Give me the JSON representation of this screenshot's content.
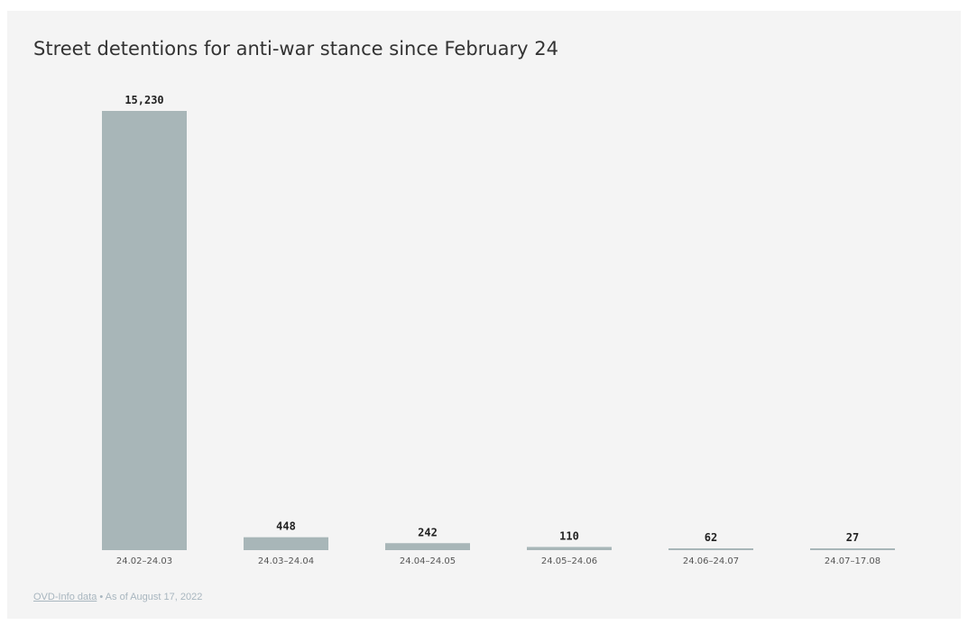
{
  "chart_data": {
    "type": "bar",
    "title": "Street detentions for anti-war stance since February 24",
    "categories": [
      "24.02–24.03",
      "24.03–24.04",
      "24.04–24.05",
      "24.05–24.06",
      "24.06–24.07",
      "24.07–17.08"
    ],
    "values": [
      15230,
      448,
      242,
      110,
      62,
      27
    ],
    "data_labels": [
      "15,230",
      "448",
      "242",
      "110",
      "62",
      "27"
    ],
    "xlabel": "",
    "ylabel": "",
    "ylim": [
      0,
      15230
    ],
    "grid": false,
    "legend": "none",
    "bar_color": "#a8b6b8"
  },
  "footer": {
    "source_link": "OVD-Info data",
    "note": " • As of August 17, 2022"
  }
}
